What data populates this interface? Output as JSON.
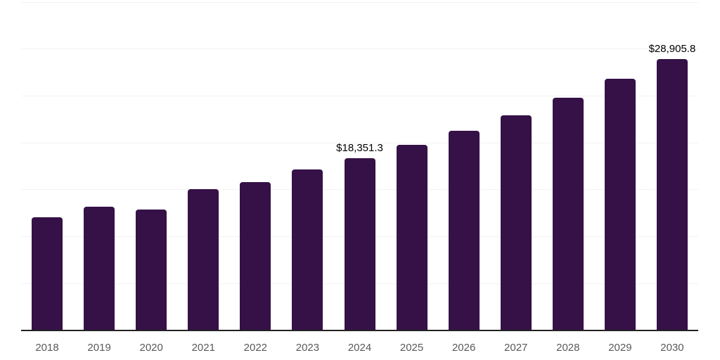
{
  "chart_data": {
    "type": "bar",
    "title": "",
    "xlabel": "",
    "ylabel": "",
    "categories": [
      "2018",
      "2019",
      "2020",
      "2021",
      "2022",
      "2023",
      "2024",
      "2025",
      "2026",
      "2027",
      "2028",
      "2029",
      "2030"
    ],
    "values": [
      12100,
      13200,
      12900,
      15100,
      15800,
      17200,
      18351.3,
      19800,
      21300,
      22900,
      24800,
      26800,
      28905.8
    ],
    "data_labels": [
      "",
      "",
      "",
      "",
      "",
      "",
      "$18,351.3",
      "",
      "",
      "",
      "",
      "",
      "$28,905.8"
    ],
    "ylim": [
      0,
      35000
    ],
    "gridline_step": 5000,
    "grid": true,
    "legend": false,
    "colors": {
      "bar": "#351147",
      "gridline": "#f2f2f2",
      "axis_line": "#222222",
      "tick_label": "#595959",
      "data_label": "#000000",
      "background": "#ffffff"
    }
  }
}
